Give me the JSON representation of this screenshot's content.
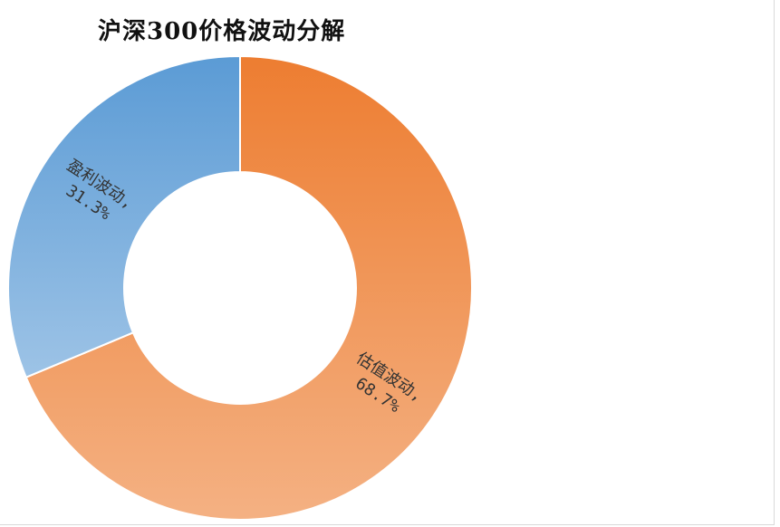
{
  "chart_data": {
    "type": "pie",
    "donut": true,
    "title": "沪深300价格波动分解",
    "slices": [
      {
        "name": "估值波动",
        "value": 68.7,
        "label": "估值波动,",
        "value_label": "68.7%",
        "color_start": "#ed7d31",
        "color_end": "#f4b183"
      },
      {
        "name": "盈利波动",
        "value": 31.3,
        "label": "盈利波动,",
        "value_label": "31.3%",
        "color_start": "#5b9bd5",
        "color_end": "#9dc3e6"
      }
    ],
    "start_angle_deg": 0,
    "direction": "clockwise",
    "legend": "none"
  }
}
